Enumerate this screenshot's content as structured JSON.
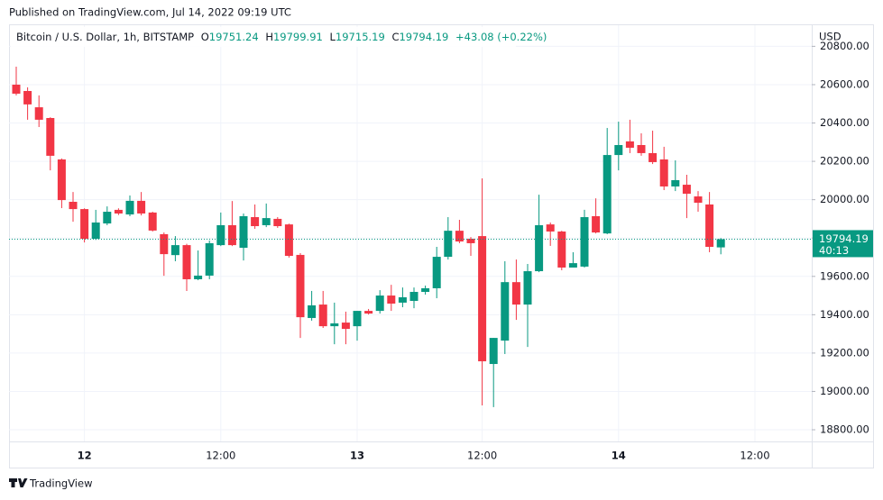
{
  "chart_data": {
    "type": "candlestick",
    "title": "Published on TradingView.com, Jul 14, 2022 09:19 UTC",
    "symbol": "Bitcoin / U.S. Dollar, 1h, BITSTAMP",
    "legend_labels": [
      "O",
      "H",
      "L",
      "C"
    ],
    "change": "+43.08 (+0.22%)",
    "currency": "USD",
    "countdown": "40:13",
    "brand": "TradingView",
    "categories": [
      null,
      null,
      null,
      null,
      null,
      null,
      "12",
      null,
      null,
      null,
      null,
      null,
      null,
      null,
      null,
      null,
      null,
      null,
      "12:00",
      null,
      null,
      null,
      null,
      null,
      null,
      null,
      null,
      null,
      null,
      null,
      "13",
      null,
      null,
      null,
      null,
      null,
      null,
      null,
      null,
      null,
      null,
      "12:00",
      null,
      null,
      null,
      null,
      null,
      null,
      null,
      null,
      null,
      null,
      null,
      "14",
      null,
      null,
      null,
      null,
      null,
      null,
      null,
      null,
      null,
      null,
      null,
      "12:00"
    ],
    "open": [
      20600,
      20567,
      20482,
      20426,
      20210,
      19989,
      19951,
      19796,
      19876,
      19947,
      19923,
      19994,
      19933,
      19820,
      19711,
      19763,
      19585,
      19604,
      19763,
      19867,
      19749,
      19909,
      19867,
      19900,
      19871,
      19712,
      19383,
      19453,
      19340,
      19359,
      19340,
      19420,
      19420,
      19500,
      19463,
      19472,
      19519,
      19538,
      19702,
      19838,
      19796,
      19810,
      19143,
      19265,
      19570,
      19453,
      19627,
      19871,
      19834,
      19646,
      19651,
      19914,
      19824,
      20233,
      20304,
      20285,
      20243,
      20210,
      20069,
      20078,
      20017,
      19975,
      19751.24,
      null,
      null,
      null
    ],
    "high": [
      20694,
      20586,
      20544,
      20430,
      20215,
      20040,
      19955,
      19947,
      19965,
      19955,
      20022,
      20040,
      19937,
      19829,
      19810,
      19770,
      19735,
      19787,
      19933,
      19993,
      19928,
      19975,
      19980,
      19909,
      19875,
      19721,
      19524,
      19524,
      19463,
      19416,
      19420,
      19430,
      19528,
      19556,
      19542,
      19542,
      19552,
      19754,
      19909,
      19895,
      19805,
      20111,
      19279,
      19679,
      19688,
      19665,
      20026,
      19881,
      19838,
      19726,
      19947,
      20007,
      20374,
      20407,
      20417,
      20346,
      20360,
      20276,
      20205,
      20130,
      20045,
      20040,
      19799.91,
      null,
      null,
      null
    ],
    "low": [
      20544,
      20417,
      20379,
      20153,
      19956,
      19885,
      19777,
      19790,
      19867,
      19920,
      19914,
      19918,
      19834,
      19603,
      19679,
      19524,
      19580,
      19585,
      19758,
      19758,
      19683,
      19848,
      19857,
      19853,
      19698,
      19279,
      19369,
      19331,
      19246,
      19246,
      19265,
      19401,
      19406,
      19420,
      19439,
      19434,
      19505,
      19486,
      19688,
      19773,
      19707,
      18927,
      18918,
      19195,
      19373,
      19232,
      19622,
      19759,
      19632,
      19646,
      19646,
      19824,
      19820,
      20153,
      20243,
      20229,
      20186,
      20050,
      20045,
      19904,
      19937,
      19726,
      19715.19,
      null,
      null,
      null
    ],
    "close": [
      20553,
      20497,
      20417,
      20229,
      19998,
      19951,
      19796,
      19881,
      19937,
      19928,
      19994,
      19928,
      19839,
      19716,
      19763,
      19585,
      19604,
      19773,
      19867,
      19763,
      19914,
      19862,
      19904,
      19862,
      19707,
      19387,
      19449,
      19340,
      19355,
      19326,
      19420,
      19406,
      19500,
      19458,
      19491,
      19519,
      19538,
      19702,
      19838,
      19782,
      19773,
      19157,
      19279,
      19570,
      19453,
      19627,
      19867,
      19834,
      19646,
      19669,
      19909,
      19829,
      20233,
      20285,
      20271,
      20243,
      20196,
      20069,
      20102,
      20031,
      19984,
      19754,
      19794.19,
      null,
      null,
      null
    ],
    "up_color": "#089981",
    "down_color": "#f23645",
    "ylim": [
      18739,
      20910
    ],
    "yticks": [
      {
        "value": 18800,
        "label": "18800.00"
      },
      {
        "value": 19000,
        "label": "19000.00"
      },
      {
        "value": 19200,
        "label": "19200.00"
      },
      {
        "value": 19400,
        "label": "19400.00"
      },
      {
        "value": 19600,
        "label": "19600.00"
      },
      {
        "value": 19800,
        "label": "19800.00"
      },
      {
        "value": 20000,
        "label": "20000.00"
      },
      {
        "value": 20200,
        "label": "20200.00"
      },
      {
        "value": 20400,
        "label": "20400.00"
      },
      {
        "value": 20600,
        "label": "20600.00"
      },
      {
        "value": 20800,
        "label": "20800.00"
      }
    ],
    "grid": true,
    "last_price_line": true
  }
}
